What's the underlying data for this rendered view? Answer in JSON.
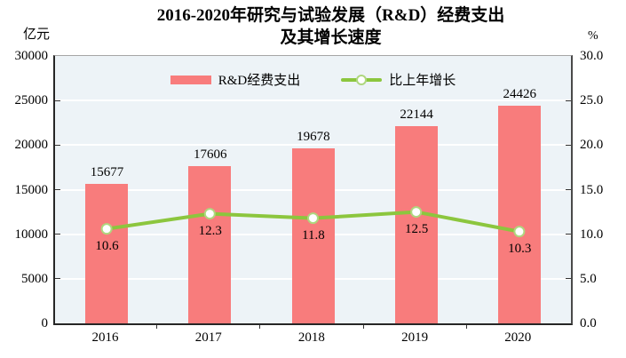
{
  "title": {
    "line1": "2016-2020年研究与试验发展（R&D）经费支出",
    "line2": "及其增长速度"
  },
  "axes": {
    "left_unit": "亿元",
    "right_unit": "%",
    "left_ticks": [
      "30000",
      "25000",
      "20000",
      "15000",
      "10000",
      "5000",
      "0"
    ],
    "right_ticks": [
      "30.0",
      "25.0",
      "20.0",
      "15.0",
      "10.0",
      "5.0",
      "0.0"
    ]
  },
  "legend": {
    "bar_label": "R&D经费支出",
    "line_label": "比上年增长"
  },
  "colors": {
    "bar": "#F87C7C",
    "line": "#8CC63E",
    "marker_fill": "#FFFFFF",
    "marker_stroke": "#AFD77F",
    "plot_background": "#EDF3F7",
    "gridline": "#FFFFFF"
  },
  "chart_data": {
    "type": "bar",
    "categories": [
      "2016",
      "2017",
      "2018",
      "2019",
      "2020"
    ],
    "series": [
      {
        "name": "R&D经费支出",
        "type": "bar",
        "axis": "left",
        "values": [
          15677,
          17606,
          19678,
          22144,
          24426
        ]
      },
      {
        "name": "比上年增长",
        "type": "line",
        "axis": "right",
        "values": [
          10.6,
          12.3,
          11.8,
          12.5,
          10.3
        ]
      }
    ],
    "title": "2016-2020年研究与试验发展（R&D）经费支出 及其增长速度",
    "xlabel": "",
    "ylabel_left": "亿元",
    "ylabel_right": "%",
    "ylim_left": [
      0,
      30000
    ],
    "ylim_right": [
      0,
      30
    ],
    "tick_step_left": 5000,
    "tick_step_right": 5,
    "grid": true,
    "legend_position": "top-center-inside",
    "data_labels": true
  }
}
